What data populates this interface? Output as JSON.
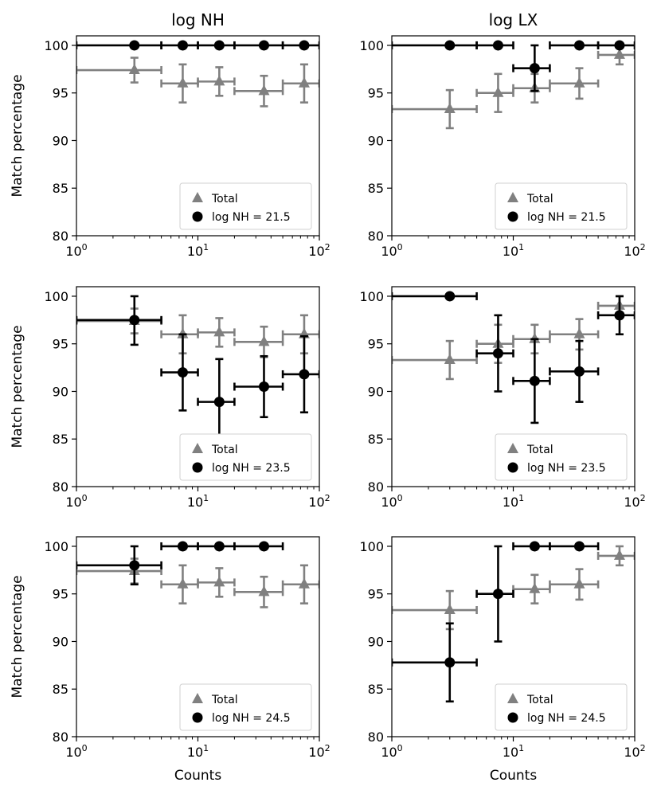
{
  "column_titles": [
    "log NH",
    "log LX"
  ],
  "y_axis_label": "Match percentage",
  "x_axis_label": "Counts",
  "legend": {
    "total_label": "Total",
    "total_color": "#808080",
    "series_color": "#000000"
  },
  "chart_data": [
    {
      "type": "scatter",
      "row": 0,
      "col": 0,
      "title": "log NH",
      "xscale": "log",
      "xlim": [
        1,
        100
      ],
      "ylim": [
        80,
        101
      ],
      "yticks": [
        80,
        85,
        90,
        95,
        100
      ],
      "xticks": [
        1,
        10,
        100
      ],
      "legend_position": "lower-right",
      "series": [
        {
          "name": "Total",
          "marker": "triangle",
          "color": "#808080",
          "points": [
            {
              "x": 3,
              "xlo": 1,
              "xhi": 5,
              "y": 97.4,
              "ylo": 96.1,
              "yhi": 98.7
            },
            {
              "x": 7.5,
              "xlo": 5,
              "xhi": 10,
              "y": 96,
              "ylo": 94,
              "yhi": 98
            },
            {
              "x": 15,
              "xlo": 10,
              "xhi": 20,
              "y": 96.2,
              "ylo": 94.7,
              "yhi": 97.7
            },
            {
              "x": 35,
              "xlo": 20,
              "xhi": 50,
              "y": 95.2,
              "ylo": 93.6,
              "yhi": 96.8
            },
            {
              "x": 75,
              "xlo": 50,
              "xhi": 100,
              "y": 96,
              "ylo": 94,
              "yhi": 98
            }
          ]
        },
        {
          "name": "log NH = 21.5",
          "marker": "circle",
          "color": "#000000",
          "points": [
            {
              "x": 3,
              "xlo": 1,
              "xhi": 5,
              "y": 100,
              "ylo": 100,
              "yhi": 100
            },
            {
              "x": 7.5,
              "xlo": 5,
              "xhi": 10,
              "y": 100,
              "ylo": 100,
              "yhi": 100
            },
            {
              "x": 15,
              "xlo": 10,
              "xhi": 20,
              "y": 100,
              "ylo": 100,
              "yhi": 100
            },
            {
              "x": 35,
              "xlo": 20,
              "xhi": 50,
              "y": 100,
              "ylo": 100,
              "yhi": 100
            },
            {
              "x": 75,
              "xlo": 50,
              "xhi": 100,
              "y": 100,
              "ylo": 100,
              "yhi": 100
            }
          ]
        }
      ]
    },
    {
      "type": "scatter",
      "row": 0,
      "col": 1,
      "title": "log LX",
      "xscale": "log",
      "xlim": [
        1,
        100
      ],
      "ylim": [
        80,
        101
      ],
      "yticks": [
        80,
        85,
        90,
        95,
        100
      ],
      "xticks": [
        1,
        10,
        100
      ],
      "legend_position": "lower-right",
      "series": [
        {
          "name": "Total",
          "marker": "triangle",
          "color": "#808080",
          "points": [
            {
              "x": 3,
              "xlo": 1,
              "xhi": 5,
              "y": 93.3,
              "ylo": 91.3,
              "yhi": 95.3
            },
            {
              "x": 7.5,
              "xlo": 5,
              "xhi": 10,
              "y": 95,
              "ylo": 93,
              "yhi": 97
            },
            {
              "x": 15,
              "xlo": 10,
              "xhi": 20,
              "y": 95.5,
              "ylo": 94,
              "yhi": 97
            },
            {
              "x": 35,
              "xlo": 20,
              "xhi": 50,
              "y": 96,
              "ylo": 94.4,
              "yhi": 97.6
            },
            {
              "x": 75,
              "xlo": 50,
              "xhi": 100,
              "y": 99,
              "ylo": 98,
              "yhi": 100
            }
          ]
        },
        {
          "name": "log NH = 21.5",
          "marker": "circle",
          "color": "#000000",
          "points": [
            {
              "x": 3,
              "xlo": 1,
              "xhi": 5,
              "y": 100,
              "ylo": 100,
              "yhi": 100
            },
            {
              "x": 7.5,
              "xlo": 5,
              "xhi": 10,
              "y": 100,
              "ylo": 100,
              "yhi": 100
            },
            {
              "x": 15,
              "xlo": 10,
              "xhi": 20,
              "y": 97.6,
              "ylo": 95.2,
              "yhi": 100
            },
            {
              "x": 35,
              "xlo": 20,
              "xhi": 50,
              "y": 100,
              "ylo": 100,
              "yhi": 100
            },
            {
              "x": 75,
              "xlo": 50,
              "xhi": 100,
              "y": 100,
              "ylo": 100,
              "yhi": 100
            }
          ]
        }
      ]
    },
    {
      "type": "scatter",
      "row": 1,
      "col": 0,
      "title": "",
      "xscale": "log",
      "xlim": [
        1,
        100
      ],
      "ylim": [
        80,
        101
      ],
      "yticks": [
        80,
        85,
        90,
        95,
        100
      ],
      "xticks": [
        1,
        10,
        100
      ],
      "legend_position": "lower-right",
      "series": [
        {
          "name": "Total",
          "marker": "triangle",
          "color": "#808080",
          "points": [
            {
              "x": 3,
              "xlo": 1,
              "xhi": 5,
              "y": 97.4,
              "ylo": 96.1,
              "yhi": 98.7
            },
            {
              "x": 7.5,
              "xlo": 5,
              "xhi": 10,
              "y": 96,
              "ylo": 94,
              "yhi": 98
            },
            {
              "x": 15,
              "xlo": 10,
              "xhi": 20,
              "y": 96.2,
              "ylo": 94.7,
              "yhi": 97.7
            },
            {
              "x": 35,
              "xlo": 20,
              "xhi": 50,
              "y": 95.2,
              "ylo": 93.6,
              "yhi": 96.8
            },
            {
              "x": 75,
              "xlo": 50,
              "xhi": 100,
              "y": 96,
              "ylo": 94,
              "yhi": 98
            }
          ]
        },
        {
          "name": "log NH = 23.5",
          "marker": "circle",
          "color": "#000000",
          "points": [
            {
              "x": 3,
              "xlo": 1,
              "xhi": 5,
              "y": 97.5,
              "ylo": 94.9,
              "yhi": 100
            },
            {
              "x": 7.5,
              "xlo": 5,
              "xhi": 10,
              "y": 92,
              "ylo": 88,
              "yhi": 96
            },
            {
              "x": 15,
              "xlo": 10,
              "xhi": 20,
              "y": 88.9,
              "ylo": 84.4,
              "yhi": 93.4
            },
            {
              "x": 35,
              "xlo": 20,
              "xhi": 50,
              "y": 90.5,
              "ylo": 87.3,
              "yhi": 93.7
            },
            {
              "x": 75,
              "xlo": 50,
              "xhi": 100,
              "y": 91.8,
              "ylo": 87.8,
              "yhi": 95.8
            }
          ]
        }
      ]
    },
    {
      "type": "scatter",
      "row": 1,
      "col": 1,
      "title": "",
      "xscale": "log",
      "xlim": [
        1,
        100
      ],
      "ylim": [
        80,
        101
      ],
      "yticks": [
        80,
        85,
        90,
        95,
        100
      ],
      "xticks": [
        1,
        10,
        100
      ],
      "legend_position": "lower-right",
      "series": [
        {
          "name": "Total",
          "marker": "triangle",
          "color": "#808080",
          "points": [
            {
              "x": 3,
              "xlo": 1,
              "xhi": 5,
              "y": 93.3,
              "ylo": 91.3,
              "yhi": 95.3
            },
            {
              "x": 7.5,
              "xlo": 5,
              "xhi": 10,
              "y": 95,
              "ylo": 93,
              "yhi": 97
            },
            {
              "x": 15,
              "xlo": 10,
              "xhi": 20,
              "y": 95.5,
              "ylo": 94,
              "yhi": 97
            },
            {
              "x": 35,
              "xlo": 20,
              "xhi": 50,
              "y": 96,
              "ylo": 94.4,
              "yhi": 97.6
            },
            {
              "x": 75,
              "xlo": 50,
              "xhi": 100,
              "y": 99,
              "ylo": 98,
              "yhi": 100
            }
          ]
        },
        {
          "name": "log NH = 23.5",
          "marker": "circle",
          "color": "#000000",
          "points": [
            {
              "x": 3,
              "xlo": 1,
              "xhi": 5,
              "y": 100,
              "ylo": 100,
              "yhi": 100
            },
            {
              "x": 7.5,
              "xlo": 5,
              "xhi": 10,
              "y": 94,
              "ylo": 90,
              "yhi": 98
            },
            {
              "x": 15,
              "xlo": 10,
              "xhi": 20,
              "y": 91.1,
              "ylo": 86.7,
              "yhi": 95.5
            },
            {
              "x": 35,
              "xlo": 20,
              "xhi": 50,
              "y": 92.1,
              "ylo": 88.9,
              "yhi": 95.3
            },
            {
              "x": 75,
              "xlo": 50,
              "xhi": 100,
              "y": 98,
              "ylo": 96,
              "yhi": 100
            }
          ]
        }
      ]
    },
    {
      "type": "scatter",
      "row": 2,
      "col": 0,
      "title": "",
      "xscale": "log",
      "xlim": [
        1,
        100
      ],
      "ylim": [
        80,
        101
      ],
      "yticks": [
        80,
        85,
        90,
        95,
        100
      ],
      "xticks": [
        1,
        10,
        100
      ],
      "legend_position": "lower-right",
      "series": [
        {
          "name": "Total",
          "marker": "triangle",
          "color": "#808080",
          "points": [
            {
              "x": 3,
              "xlo": 1,
              "xhi": 5,
              "y": 97.4,
              "ylo": 96.1,
              "yhi": 98.7
            },
            {
              "x": 7.5,
              "xlo": 5,
              "xhi": 10,
              "y": 96,
              "ylo": 94,
              "yhi": 98
            },
            {
              "x": 15,
              "xlo": 10,
              "xhi": 20,
              "y": 96.2,
              "ylo": 94.7,
              "yhi": 97.7
            },
            {
              "x": 35,
              "xlo": 20,
              "xhi": 50,
              "y": 95.2,
              "ylo": 93.6,
              "yhi": 96.8
            },
            {
              "x": 75,
              "xlo": 50,
              "xhi": 100,
              "y": 96,
              "ylo": 94,
              "yhi": 98
            }
          ]
        },
        {
          "name": "log NH = 24.5",
          "marker": "circle",
          "color": "#000000",
          "points": [
            {
              "x": 3,
              "xlo": 1,
              "xhi": 5,
              "y": 98,
              "ylo": 96,
              "yhi": 100
            },
            {
              "x": 7.5,
              "xlo": 5,
              "xhi": 10,
              "y": 100,
              "ylo": 100,
              "yhi": 100
            },
            {
              "x": 15,
              "xlo": 10,
              "xhi": 20,
              "y": 100,
              "ylo": 100,
              "yhi": 100
            },
            {
              "x": 35,
              "xlo": 20,
              "xhi": 50,
              "y": 100,
              "ylo": 100,
              "yhi": 100
            }
          ]
        }
      ]
    },
    {
      "type": "scatter",
      "row": 2,
      "col": 1,
      "title": "",
      "xscale": "log",
      "xlim": [
        1,
        100
      ],
      "ylim": [
        80,
        101
      ],
      "yticks": [
        80,
        85,
        90,
        95,
        100
      ],
      "xticks": [
        1,
        10,
        100
      ],
      "legend_position": "lower-right",
      "series": [
        {
          "name": "Total",
          "marker": "triangle",
          "color": "#808080",
          "points": [
            {
              "x": 3,
              "xlo": 1,
              "xhi": 5,
              "y": 93.3,
              "ylo": 91.3,
              "yhi": 95.3
            },
            {
              "x": 15,
              "xlo": 10,
              "xhi": 20,
              "y": 95.5,
              "ylo": 94,
              "yhi": 97
            },
            {
              "x": 35,
              "xlo": 20,
              "xhi": 50,
              "y": 96,
              "ylo": 94.4,
              "yhi": 97.6
            },
            {
              "x": 75,
              "xlo": 50,
              "xhi": 100,
              "y": 99,
              "ylo": 98,
              "yhi": 100
            }
          ]
        },
        {
          "name": "log NH = 24.5",
          "marker": "circle",
          "color": "#000000",
          "points": [
            {
              "x": 3,
              "xlo": 1,
              "xhi": 5,
              "y": 87.8,
              "ylo": 83.7,
              "yhi": 91.9
            },
            {
              "x": 7.5,
              "xlo": 5,
              "xhi": 10,
              "y": 95,
              "ylo": 90,
              "yhi": 100
            },
            {
              "x": 15,
              "xlo": 10,
              "xhi": 20,
              "y": 100,
              "ylo": 100,
              "yhi": 100
            },
            {
              "x": 35,
              "xlo": 20,
              "xhi": 50,
              "y": 100,
              "ylo": 100,
              "yhi": 100
            }
          ]
        }
      ]
    }
  ]
}
